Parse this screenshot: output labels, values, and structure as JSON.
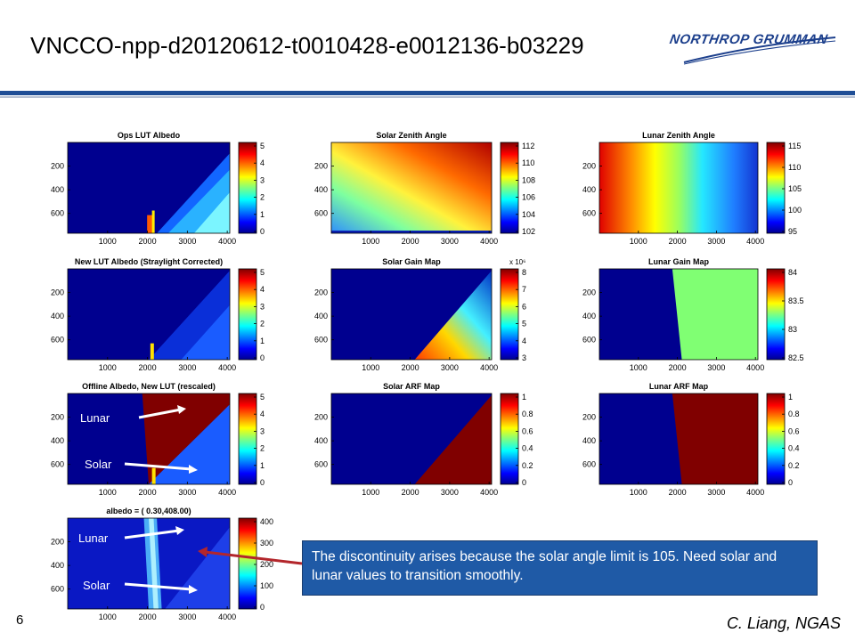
{
  "slide": {
    "title": "VNCCO-npp-d20120612-t0010428-e0012136-b03229",
    "logo": "NORTHROP GRUMMAN",
    "number": "6",
    "author": "C. Liang, NGAS"
  },
  "callout": {
    "text": "The discontinuity arises because the solar angle limit is 105.  Need solar and lunar values to transition smoothly."
  },
  "annotations": {
    "lunar": "Lunar",
    "solar": "Solar"
  },
  "colors": {
    "accent_blue": "#1f4e96",
    "callout_bg": "#1f5aa6",
    "arrow_red": "#b3262b"
  },
  "chart_data": [
    {
      "type": "heatmap",
      "title": "Ops LUT Albedo",
      "x_ticks": [
        "1000",
        "2000",
        "3000",
        "4000"
      ],
      "y_ticks": [
        "200",
        "400",
        "600"
      ],
      "colorbar_ticks": [
        "0",
        "1",
        "2",
        "3",
        "4",
        "5"
      ],
      "colorbar_exponent": ""
    },
    {
      "type": "heatmap",
      "title": "Solar Zenith Angle",
      "x_ticks": [
        "1000",
        "2000",
        "3000",
        "4000"
      ],
      "y_ticks": [
        "200",
        "400",
        "600"
      ],
      "colorbar_ticks": [
        "102",
        "104",
        "106",
        "108",
        "110",
        "112"
      ],
      "colorbar_exponent": ""
    },
    {
      "type": "heatmap",
      "title": "Lunar Zenith Angle",
      "x_ticks": [
        "1000",
        "2000",
        "3000",
        "4000"
      ],
      "y_ticks": [
        "200",
        "400",
        "600"
      ],
      "colorbar_ticks": [
        "95",
        "100",
        "105",
        "110",
        "115"
      ],
      "colorbar_exponent": ""
    },
    {
      "type": "heatmap",
      "title": "New LUT Albedo (Straylight Corrected)",
      "x_ticks": [
        "1000",
        "2000",
        "3000",
        "4000"
      ],
      "y_ticks": [
        "200",
        "400",
        "600"
      ],
      "colorbar_ticks": [
        "0",
        "1",
        "2",
        "3",
        "4",
        "5"
      ],
      "colorbar_exponent": ""
    },
    {
      "type": "heatmap",
      "title": "Solar Gain Map",
      "x_ticks": [
        "1000",
        "2000",
        "3000",
        "4000"
      ],
      "y_ticks": [
        "200",
        "400",
        "600"
      ],
      "colorbar_ticks": [
        "3",
        "4",
        "5",
        "6",
        "7",
        "8"
      ],
      "colorbar_exponent": "x 10⁶"
    },
    {
      "type": "heatmap",
      "title": "Lunar Gain Map",
      "x_ticks": [
        "1000",
        "2000",
        "3000",
        "4000"
      ],
      "y_ticks": [
        "200",
        "400",
        "600"
      ],
      "colorbar_ticks": [
        "82.5",
        "83",
        "83.5",
        "84"
      ],
      "colorbar_exponent": ""
    },
    {
      "type": "heatmap",
      "title": "Offline Albedo, New LUT (rescaled)",
      "x_ticks": [
        "1000",
        "2000",
        "3000",
        "4000"
      ],
      "y_ticks": [
        "200",
        "400",
        "600"
      ],
      "colorbar_ticks": [
        "0",
        "1",
        "2",
        "3",
        "4",
        "5"
      ],
      "colorbar_exponent": ""
    },
    {
      "type": "heatmap",
      "title": "Solar ARF Map",
      "x_ticks": [
        "1000",
        "2000",
        "3000",
        "4000"
      ],
      "y_ticks": [
        "200",
        "400",
        "600"
      ],
      "colorbar_ticks": [
        "0",
        "0.2",
        "0.4",
        "0.6",
        "0.8",
        "1"
      ],
      "colorbar_exponent": ""
    },
    {
      "type": "heatmap",
      "title": "Lunar ARF Map",
      "x_ticks": [
        "1000",
        "2000",
        "3000",
        "4000"
      ],
      "y_ticks": [
        "200",
        "400",
        "600"
      ],
      "colorbar_ticks": [
        "0",
        "0.2",
        "0.4",
        "0.6",
        "0.8",
        "1"
      ],
      "colorbar_exponent": ""
    },
    {
      "type": "heatmap",
      "title": "albedo = ( 0.30,408.00)",
      "x_ticks": [
        "1000",
        "2000",
        "3000",
        "4000"
      ],
      "y_ticks": [
        "200",
        "400",
        "600"
      ],
      "colorbar_ticks": [
        "0",
        "100",
        "200",
        "300",
        "400"
      ],
      "colorbar_exponent": ""
    }
  ]
}
